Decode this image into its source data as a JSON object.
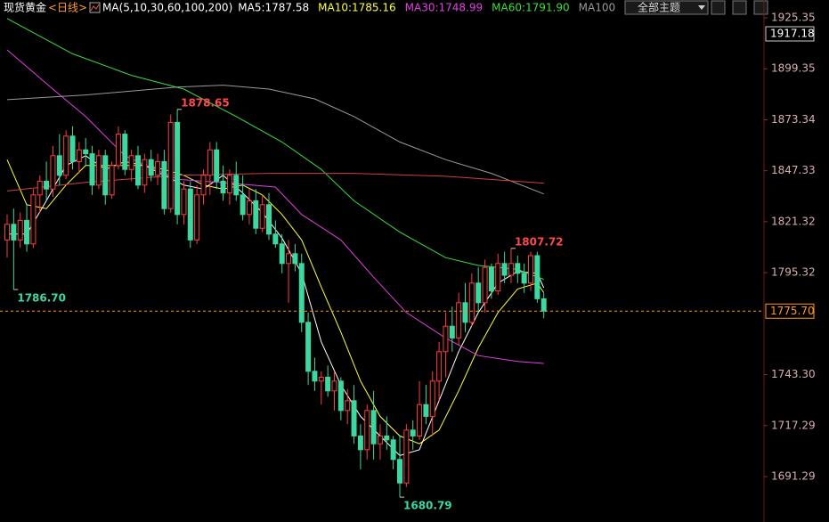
{
  "chart_data": {
    "type": "candlestick",
    "title": "现货黄金",
    "period": "<日线>",
    "indicator": "MA(5,10,30,60,100,200)",
    "theme_button": "全部主题",
    "up_color": "#ff3c3c",
    "down_color": "#3cd8a0",
    "ylim": [
      1673.1,
      1929.0
    ],
    "yticks": [
      1925.35,
      1899.35,
      1873.34,
      1847.33,
      1821.32,
      1795.32,
      {
        "value": 1743.3,
        "label": "1743.30"
      },
      1717.29,
      1691.29
    ],
    "price_marker": 1917.18,
    "last_price": {
      "value": 1775.7,
      "label": "1775.70",
      "color": "#ff9a2a"
    },
    "annotations": [
      {
        "value": 1878.65,
        "label": "1878.65",
        "color": "#ff4848"
      },
      {
        "value": 1786.7,
        "label": "1786.70",
        "color": "#3cd8a0"
      },
      {
        "value": 1807.72,
        "label": "1807.72",
        "color": "#ff4848"
      },
      {
        "value": 1680.79,
        "label": "1680.79",
        "color": "#3cd8a0"
      }
    ],
    "open": [
      1812,
      1820,
      1812,
      1822,
      1810,
      1835,
      1842,
      1838,
      1855,
      1845,
      1865,
      1852,
      1858,
      1856,
      1840,
      1855,
      1835,
      1850,
      1866,
      1848,
      1855,
      1840,
      1853,
      1845,
      1852,
      1828,
      1872,
      1825,
      1838,
      1812,
      1835,
      1845,
      1858,
      1842,
      1836,
      1845,
      1835,
      1825,
      1832,
      1818,
      1830,
      1815,
      1810,
      1800,
      1805,
      1800,
      1770,
      1745,
      1740,
      1742,
      1735,
      1740,
      1725,
      1730,
      1712,
      1705,
      1725,
      1708,
      1712,
      1710,
      1700,
      1688,
      1715,
      1712,
      1728,
      1722,
      1740,
      1755,
      1768,
      1762,
      1780,
      1770,
      1790,
      1780,
      1798,
      1786,
      1800,
      1794,
      1800,
      1795,
      1790,
      1804,
      1782
    ],
    "high": [
      1825,
      1828,
      1826,
      1830,
      1838,
      1845,
      1852,
      1860,
      1866,
      1868,
      1870,
      1862,
      1864,
      1860,
      1858,
      1858,
      1852,
      1870,
      1868,
      1858,
      1860,
      1856,
      1858,
      1856,
      1858,
      1876,
      1878.65,
      1842,
      1842,
      1840,
      1848,
      1862,
      1862,
      1850,
      1848,
      1852,
      1845,
      1838,
      1838,
      1835,
      1836,
      1822,
      1815,
      1812,
      1810,
      1805,
      1775,
      1752,
      1745,
      1748,
      1745,
      1742,
      1736,
      1738,
      1718,
      1728,
      1735,
      1718,
      1722,
      1712,
      1712,
      1718,
      1720,
      1740,
      1738,
      1745,
      1760,
      1775,
      1778,
      1785,
      1790,
      1795,
      1798,
      1802,
      1800,
      1805,
      1806,
      1807.72,
      1804,
      1800,
      1806,
      1806,
      1785
    ],
    "low": [
      1803,
      1786.7,
      1808,
      1806,
      1808,
      1826,
      1832,
      1834,
      1840,
      1843,
      1848,
      1846,
      1850,
      1835,
      1838,
      1830,
      1833,
      1848,
      1845,
      1842,
      1838,
      1836,
      1842,
      1840,
      1825,
      1826,
      1820,
      1820,
      1808,
      1810,
      1830,
      1835,
      1838,
      1832,
      1830,
      1832,
      1822,
      1820,
      1815,
      1816,
      1812,
      1808,
      1795,
      1780,
      1796,
      1765,
      1738,
      1735,
      1728,
      1732,
      1725,
      1720,
      1718,
      1708,
      1695,
      1700,
      1700,
      1700,
      1705,
      1695,
      1680.79,
      1686,
      1705,
      1710,
      1718,
      1712,
      1730,
      1742,
      1755,
      1758,
      1765,
      1768,
      1775,
      1775,
      1782,
      1784,
      1790,
      1790,
      1790,
      1785,
      1786,
      1780,
      1772
    ],
    "close": [
      1820,
      1812,
      1822,
      1810,
      1835,
      1842,
      1838,
      1855,
      1845,
      1865,
      1852,
      1858,
      1856,
      1840,
      1855,
      1835,
      1850,
      1866,
      1848,
      1855,
      1840,
      1853,
      1845,
      1852,
      1828,
      1872,
      1825,
      1838,
      1812,
      1835,
      1845,
      1858,
      1842,
      1836,
      1845,
      1835,
      1825,
      1832,
      1818,
      1830,
      1815,
      1810,
      1800,
      1805,
      1800,
      1770,
      1745,
      1740,
      1742,
      1735,
      1740,
      1725,
      1730,
      1712,
      1705,
      1725,
      1708,
      1712,
      1710,
      1700,
      1688,
      1715,
      1712,
      1728,
      1722,
      1740,
      1755,
      1768,
      1762,
      1780,
      1770,
      1790,
      1780,
      1798,
      1786,
      1800,
      1794,
      1800,
      1795,
      1790,
      1804,
      1782,
      1775.7
    ],
    "ma_lines": [
      {
        "name": "MA5:1787.58",
        "color": "#ffffff",
        "x": [
          0,
          3,
          6,
          9,
          12,
          15,
          18,
          21,
          24,
          27,
          30,
          33,
          36,
          39,
          42,
          45,
          48,
          51,
          54,
          57,
          60,
          63,
          66,
          69,
          72,
          75,
          78,
          81,
          82
        ],
        "values": [
          1815,
          1815,
          1832,
          1850,
          1855,
          1848,
          1852,
          1850,
          1845,
          1840,
          1838,
          1845,
          1836,
          1826,
          1813,
          1795,
          1760,
          1738,
          1722,
          1712,
          1702,
          1705,
          1730,
          1755,
          1775,
          1790,
          1796,
          1795,
          1787.58
        ]
      },
      {
        "name": "MA10:1785.16",
        "color": "#ffff3c",
        "x": [
          0,
          3,
          6,
          9,
          12,
          15,
          18,
          21,
          24,
          27,
          30,
          33,
          36,
          39,
          42,
          45,
          48,
          51,
          54,
          57,
          60,
          63,
          66,
          69,
          72,
          75,
          78,
          81,
          82
        ],
        "values": [
          1853,
          1830,
          1828,
          1840,
          1850,
          1850,
          1850,
          1850,
          1848,
          1845,
          1840,
          1838,
          1840,
          1835,
          1825,
          1812,
          1788,
          1765,
          1740,
          1722,
          1712,
          1708,
          1715,
          1735,
          1757,
          1775,
          1787,
          1790,
          1785.16
        ]
      },
      {
        "name": "MA30:1748.99",
        "color": "#e040e0",
        "x": [
          0,
          7,
          12,
          18,
          26,
          34,
          41,
          45,
          51,
          56,
          61,
          67,
          72,
          78,
          82
        ],
        "values": [
          1909,
          1889,
          1875,
          1855,
          1843,
          1841,
          1839,
          1825,
          1812,
          1793,
          1775,
          1762,
          1753,
          1750,
          1748.99
        ]
      },
      {
        "name": "MA60:1791.90",
        "color": "#3cdc3c",
        "x": [
          0,
          10,
          19,
          27,
          35,
          42,
          48,
          53,
          60,
          67,
          72,
          78,
          82
        ],
        "values": [
          1925,
          1907,
          1896,
          1889,
          1875,
          1862,
          1848,
          1832,
          1816,
          1803,
          1799,
          1797,
          1791.9
        ]
      },
      {
        "name": "MA100",
        "color": "#9a9a9a",
        "x": [
          0,
          12,
          26,
          33,
          40,
          47,
          53,
          60,
          67,
          74,
          82
        ],
        "values": [
          1883.6,
          1886,
          1890,
          1891,
          1889,
          1884,
          1875,
          1862,
          1853,
          1846,
          1835.5
        ]
      },
      {
        "color": "#d04040",
        "x": [
          0,
          12,
          26,
          40,
          53,
          67,
          82
        ],
        "values": [
          1837,
          1841.4,
          1845,
          1846,
          1846,
          1844.5,
          1841
        ]
      }
    ]
  }
}
